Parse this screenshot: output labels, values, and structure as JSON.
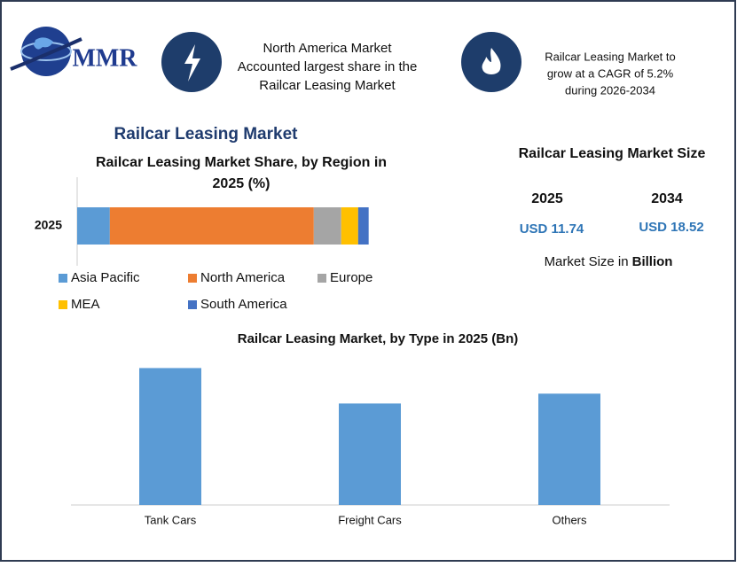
{
  "header": {
    "logo": "MMR",
    "highlights": [
      {
        "lines": [
          "North America Market",
          "Accounted largest share in the",
          "Railcar Leasing Market"
        ]
      },
      {
        "lines": [
          "Railcar Leasing Market to",
          "grow at a CAGR of 5.2%",
          "during 2026-2034"
        ]
      }
    ]
  },
  "title": "Railcar Leasing Market",
  "chart_data": [
    {
      "type": "stacked_bar",
      "title": [
        "Railcar Leasing Market Share, by Region in",
        "2025 (%)"
      ],
      "categories": [
        "2025"
      ],
      "series": [
        {
          "name": "Asia Pacific",
          "color": "#5b9bd5",
          "values": [
            11.2
          ]
        },
        {
          "name": "North America",
          "color": "#ed7d31",
          "values": [
            69.9
          ]
        },
        {
          "name": "Europe",
          "color": "#a5a5a5",
          "values": [
            9.4
          ]
        },
        {
          "name": "MEA",
          "color": "#ffc000",
          "values": [
            5.8
          ]
        },
        {
          "name": "South America",
          "color": "#4472c4",
          "values": [
            3.6
          ]
        }
      ],
      "xlim": [
        0,
        100
      ]
    },
    {
      "type": "bar",
      "title": "Railcar Leasing Market, by Type in 2025 (Bn)",
      "categories": [
        "Tank Cars",
        "Freight Cars",
        "Others"
      ],
      "values": [
        4.6,
        3.41,
        3.74
      ],
      "color": "#5b9bd5",
      "ylim": [
        0,
        5
      ]
    }
  ],
  "market_size": {
    "title": "Railcar Leasing Market Size",
    "years": [
      "2025",
      "2034"
    ],
    "values": [
      "USD 11.74",
      "USD 18.52"
    ],
    "note": "Market Size in",
    "note_bold": "Billion"
  }
}
